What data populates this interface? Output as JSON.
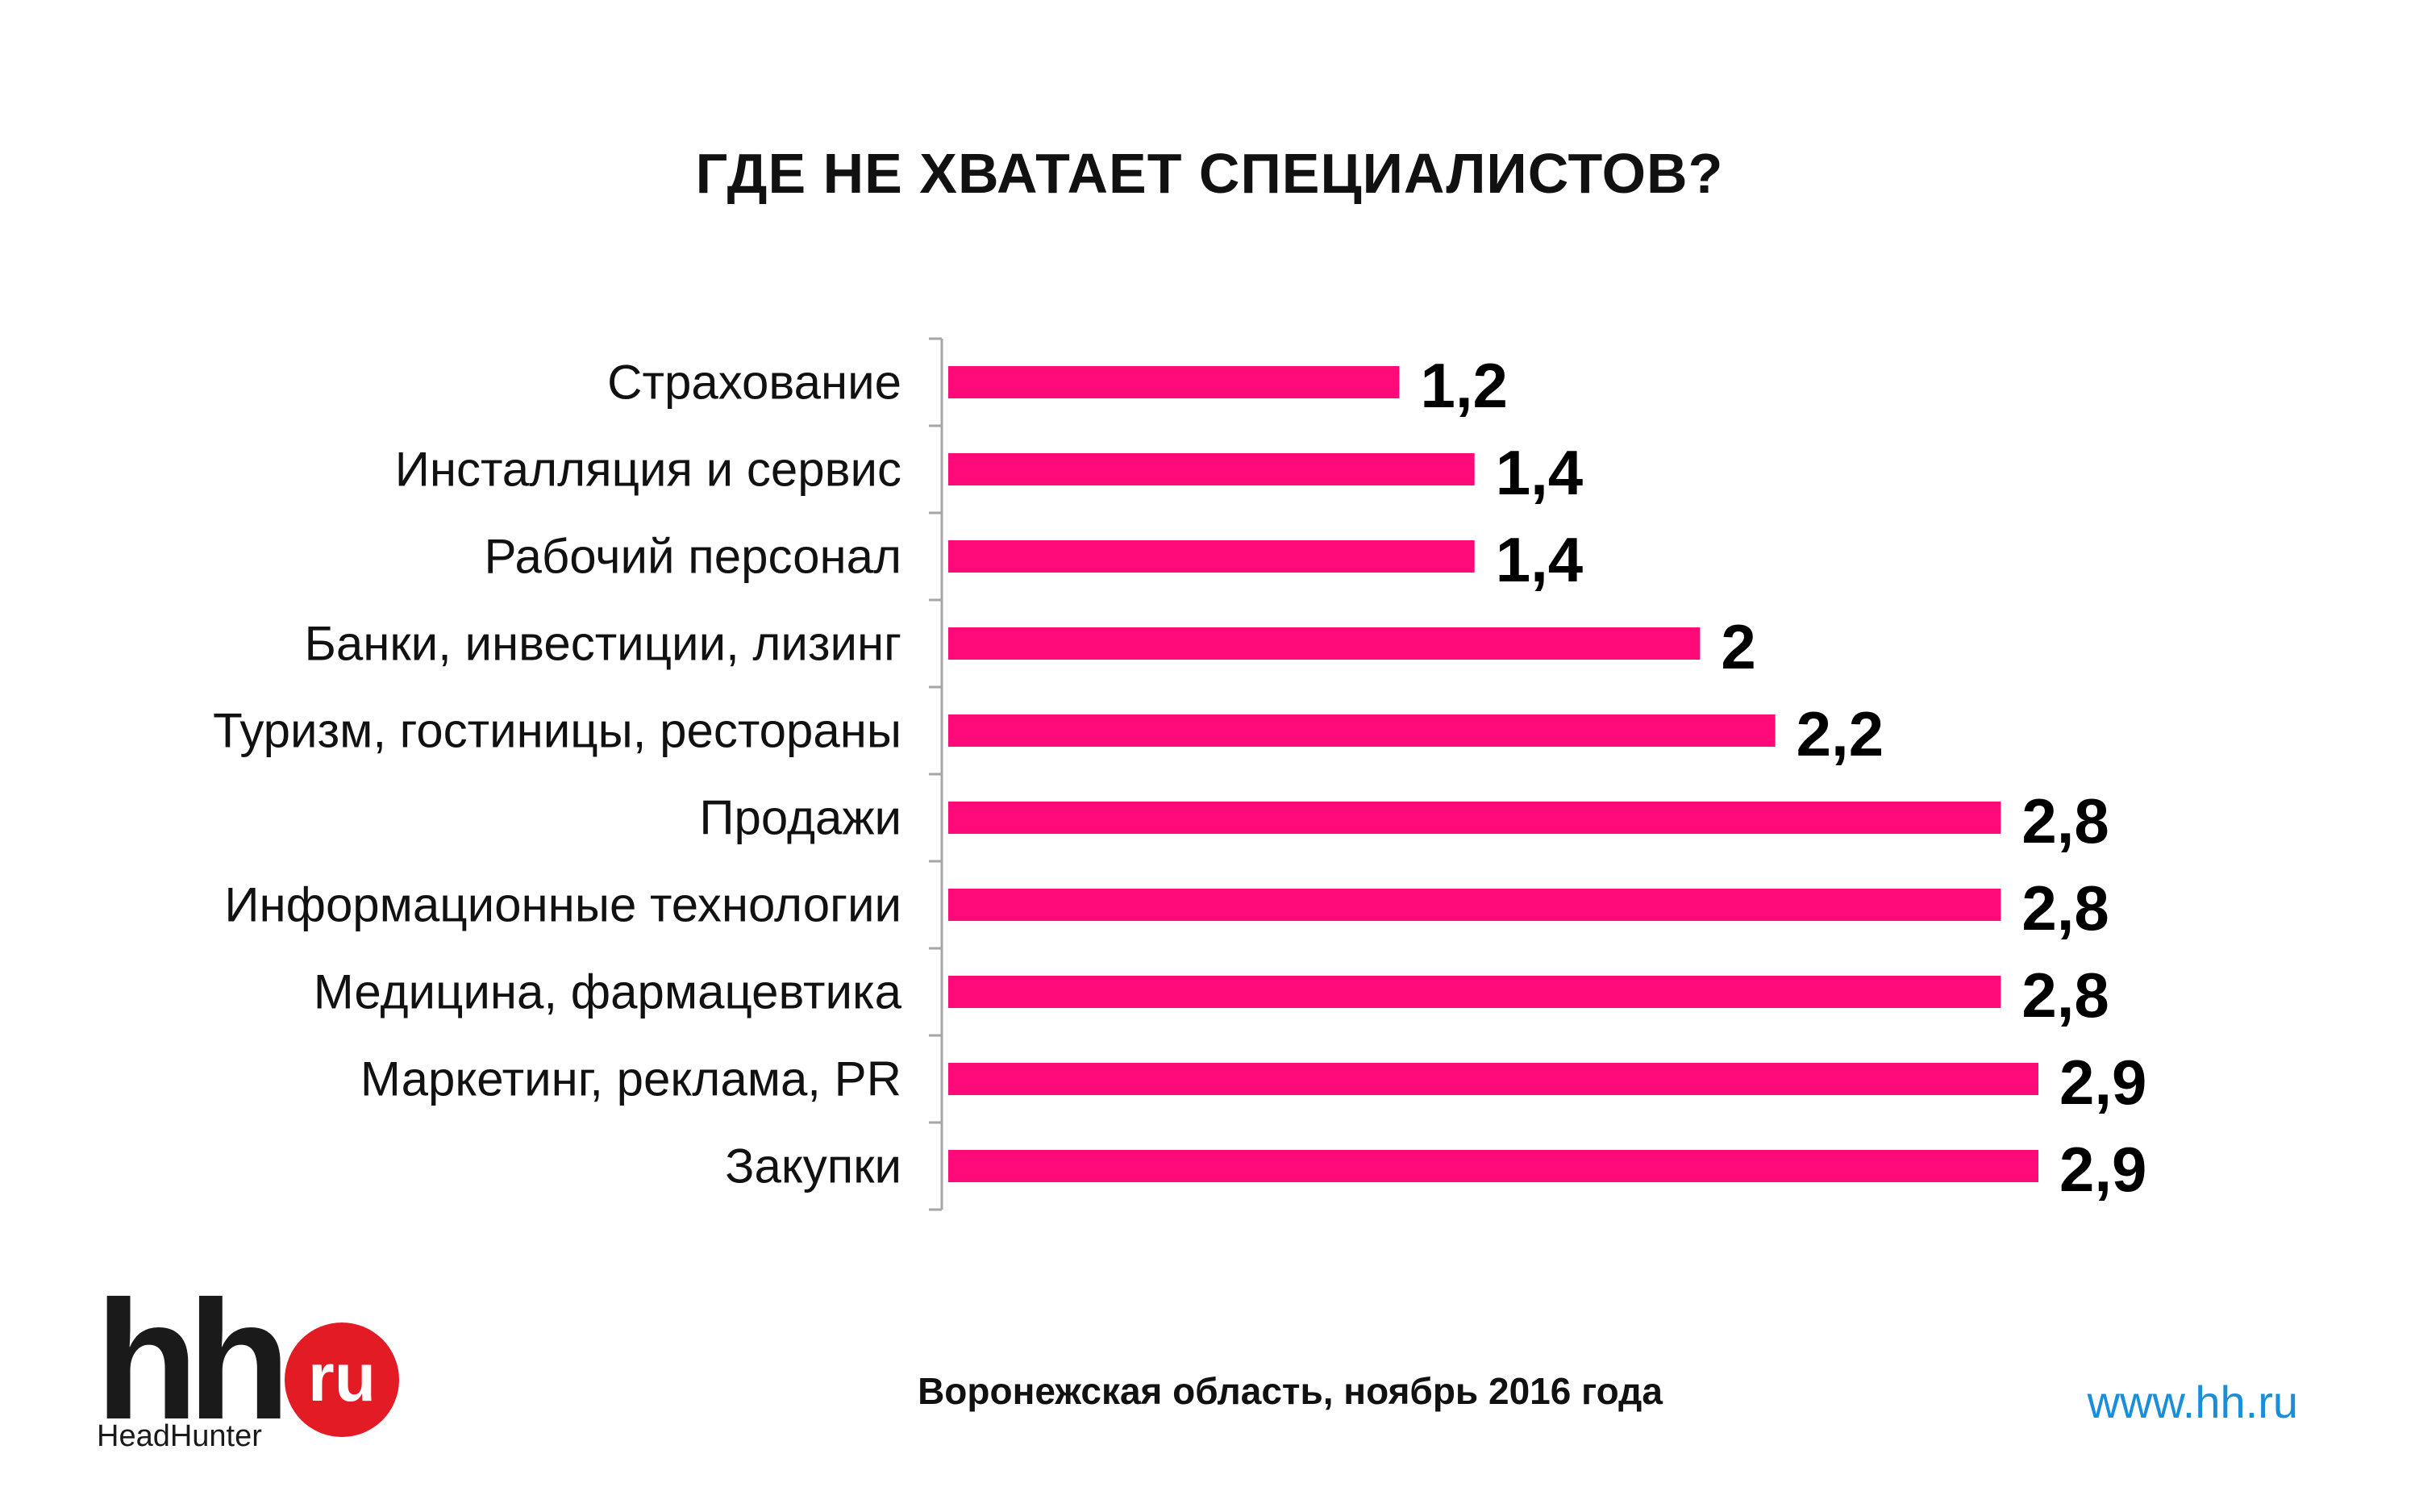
{
  "title": "ГДЕ НЕ ХВАТАЕТ СПЕЦИАЛИСТОВ?",
  "footer": {
    "note": "Воронежская область, ноябрь 2016 года",
    "url": "www.hh.ru"
  },
  "logo": {
    "main": "hh",
    "badge": "ru",
    "subtitle": "HeadHunter"
  },
  "colors": {
    "bar": "#ff0a78",
    "axis": "#a6a6a6",
    "url": "#1a8fd8",
    "logo_badge": "#e21b24"
  },
  "chart_data": {
    "type": "bar",
    "orientation": "horizontal",
    "title": "ГДЕ НЕ ХВАТАЕТ СПЕЦИАЛИСТОВ?",
    "categories": [
      "Страхование",
      "Инсталляция и сервис",
      "Рабочий персонал",
      "Банки, инвестиции, лизинг",
      "Туризм, гостиницы, рестораны",
      "Продажи",
      "Информационные технологии",
      "Медицина, фармацевтика",
      "Маркетинг, реклама, PR",
      "Закупки"
    ],
    "values": [
      1.2,
      1.4,
      1.4,
      2,
      2.2,
      2.8,
      2.8,
      2.8,
      2.9,
      2.9
    ],
    "value_labels": [
      "1,2",
      "1,4",
      "1,4",
      "2",
      "2,2",
      "2,8",
      "2,8",
      "2,8",
      "2,9",
      "2,9"
    ],
    "xlim": [
      0,
      2.9
    ],
    "grid": false,
    "legend": "none"
  }
}
